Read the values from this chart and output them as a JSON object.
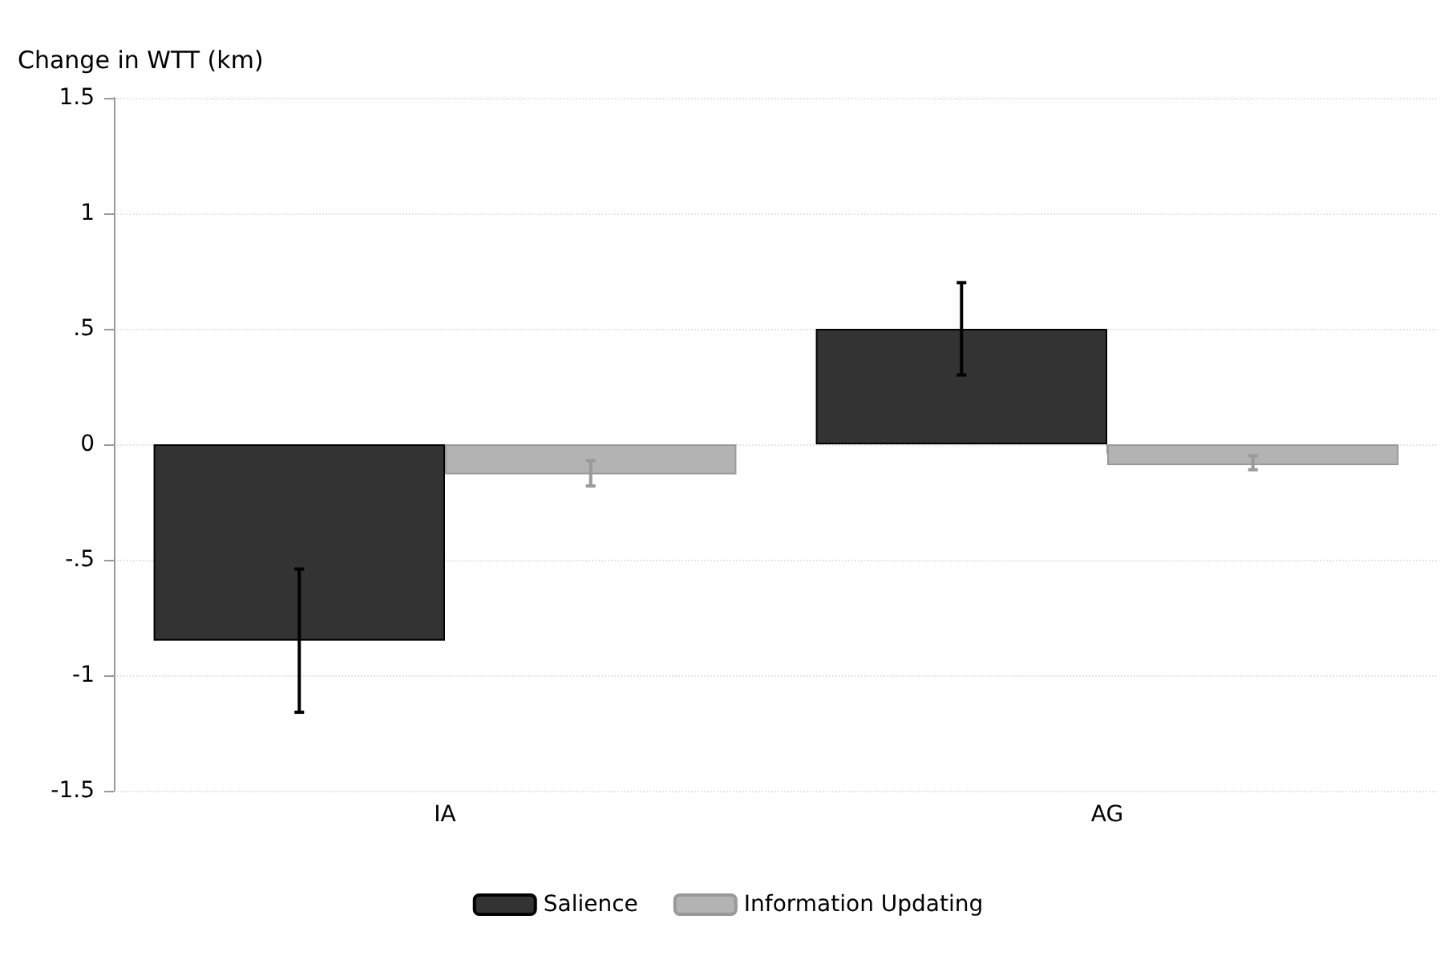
{
  "chart_data": {
    "type": "bar",
    "ylabel": "Change in WTT (km)",
    "categories": [
      "IA",
      "AG"
    ],
    "series": [
      {
        "name": "Salience",
        "color": "#333333",
        "values": [
          -0.85,
          0.5
        ],
        "errors": [
          [
            -1.16,
            -0.54
          ],
          [
            0.3,
            0.7
          ]
        ]
      },
      {
        "name": "Information Updating",
        "color": "#b3b3b3",
        "values": [
          -0.13,
          -0.09
        ],
        "errors": [
          [
            -0.18,
            -0.07
          ],
          [
            -0.11,
            -0.05
          ]
        ]
      }
    ],
    "ylim": [
      -1.5,
      1.5
    ],
    "yticks": [
      -1.5,
      -1,
      {
        "value": -0.5,
        "label": "-.5"
      },
      0,
      {
        "value": 0.5,
        "label": ".5"
      },
      1,
      1.5
    ],
    "grid": "y",
    "legend": "bottom"
  }
}
